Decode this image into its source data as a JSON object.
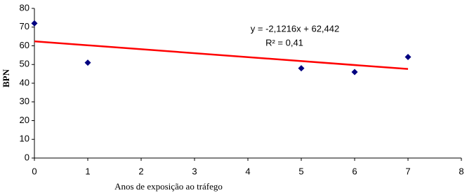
{
  "chart_data": {
    "type": "scatter",
    "x_label": "Anos de exposição ao tráfego",
    "y_label": "BPN",
    "series": [
      {
        "x": [
          0,
          1,
          5,
          6,
          7
        ],
        "values": [
          72,
          51,
          48,
          46,
          54
        ],
        "color": "#000080"
      }
    ],
    "trendline": {
      "x": [
        0,
        7
      ],
      "values": [
        62.4,
        47.6
      ],
      "color": "#ff0000"
    },
    "annotations": [
      "y = -2,1216x + 62,442",
      "R² = 0,41"
    ],
    "xlim": [
      0,
      8
    ],
    "xticks": [
      0,
      1,
      2,
      3,
      4,
      5,
      6,
      7,
      8
    ],
    "ylim": [
      0,
      80
    ],
    "yticks": [
      0,
      10,
      20,
      30,
      40,
      50,
      60,
      70,
      80
    ]
  }
}
